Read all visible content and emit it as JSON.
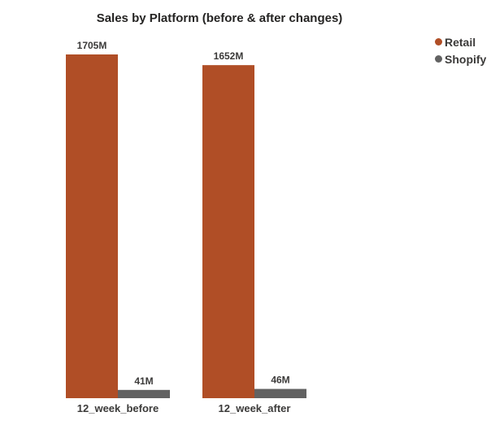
{
  "chart_data": {
    "type": "bar",
    "title": "Sales by Platform (before & after changes)",
    "categories": [
      "12_week_before",
      "12_week_after"
    ],
    "series": [
      {
        "name": "Retail",
        "values": [
          1705,
          1652
        ],
        "labels": [
          "1705M",
          "1652M"
        ],
        "color": "#B04E26"
      },
      {
        "name": "Shopify",
        "values": [
          41,
          46
        ],
        "labels": [
          "41M",
          "46M"
        ],
        "color": "#626262"
      }
    ],
    "xlabel": "",
    "ylabel": "",
    "ylim": [
      0,
      1705
    ],
    "grid": false,
    "legend_position": "top-right"
  }
}
